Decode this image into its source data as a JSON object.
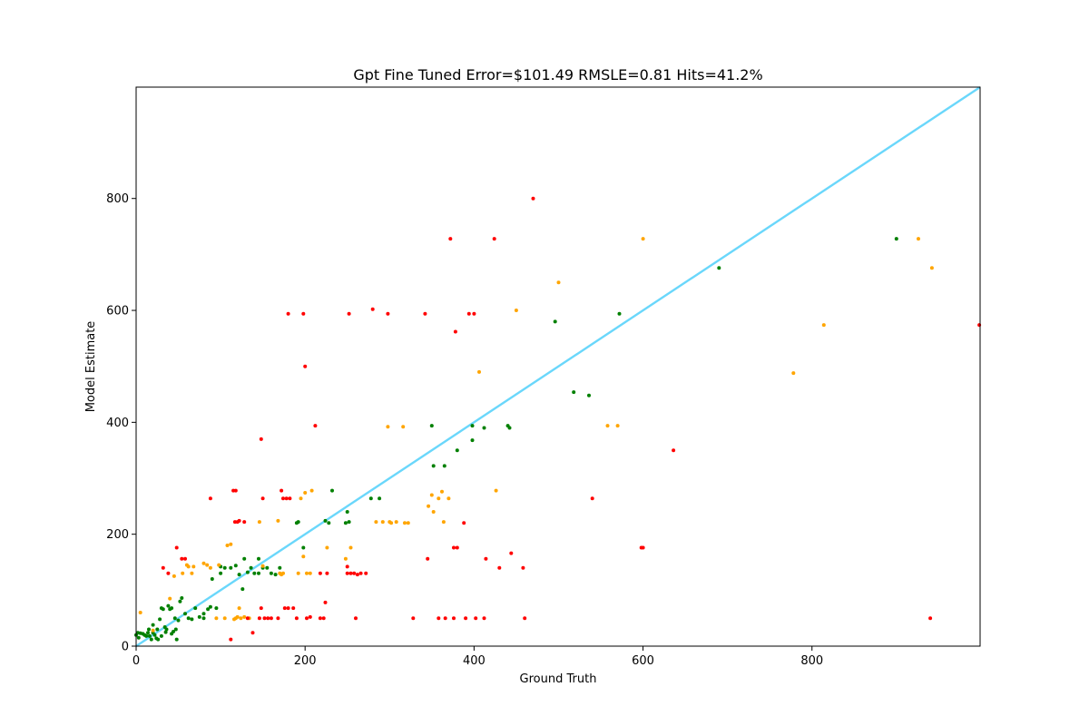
{
  "chart_data": {
    "type": "scatter",
    "title": "Gpt Fine Tuned Error=$101.49 RMSLE=0.81 Hits=41.2%",
    "xlabel": "Ground Truth",
    "ylabel": "Model Estimate",
    "xlim": [
      0,
      999
    ],
    "ylim": [
      0,
      999
    ],
    "xticks": [
      "0",
      "200",
      "400",
      "600",
      "800"
    ],
    "yticks": [
      "0",
      "200",
      "400",
      "600",
      "800"
    ],
    "grid": false,
    "legend": "none",
    "reference_line": {
      "from": [
        0,
        0
      ],
      "to": [
        999,
        999
      ],
      "color": "#6ad7fb"
    },
    "colors": {
      "green": "#008000",
      "orange": "#ffa500",
      "red": "#ff0000"
    },
    "series": [
      {
        "color": "green",
        "points": [
          [
            2,
            24
          ],
          [
            5,
            23
          ],
          [
            8,
            22
          ],
          [
            10,
            20
          ],
          [
            12,
            18
          ],
          [
            14,
            24
          ],
          [
            16,
            18
          ],
          [
            18,
            12
          ],
          [
            20,
            24
          ],
          [
            22,
            20
          ],
          [
            24,
            14
          ],
          [
            26,
            12
          ],
          [
            28,
            48
          ],
          [
            30,
            68
          ],
          [
            32,
            66
          ],
          [
            34,
            34
          ],
          [
            36,
            30
          ],
          [
            38,
            72
          ],
          [
            40,
            66
          ],
          [
            42,
            68
          ],
          [
            44,
            26
          ],
          [
            46,
            50
          ],
          [
            48,
            12
          ],
          [
            50,
            46
          ],
          [
            52,
            80
          ],
          [
            54,
            86
          ],
          [
            58,
            58
          ],
          [
            62,
            50
          ],
          [
            66,
            48
          ],
          [
            70,
            68
          ],
          [
            75,
            52
          ],
          [
            80,
            50
          ],
          [
            85,
            66
          ],
          [
            88,
            70
          ],
          [
            90,
            120
          ],
          [
            95,
            68
          ],
          [
            100,
            130
          ],
          [
            105,
            140
          ],
          [
            112,
            140
          ],
          [
            118,
            144
          ],
          [
            122,
            128
          ],
          [
            126,
            102
          ],
          [
            128,
            156
          ],
          [
            132,
            132
          ],
          [
            136,
            140
          ],
          [
            140,
            130
          ],
          [
            145,
            156
          ],
          [
            150,
            140
          ],
          [
            155,
            140
          ],
          [
            160,
            130
          ],
          [
            165,
            128
          ],
          [
            170,
            140
          ],
          [
            190,
            220
          ],
          [
            192,
            222
          ],
          [
            198,
            176
          ],
          [
            224,
            224
          ],
          [
            228,
            220
          ],
          [
            232,
            278
          ],
          [
            248,
            220
          ],
          [
            250,
            240
          ],
          [
            252,
            222
          ],
          [
            278,
            264
          ],
          [
            288,
            264
          ],
          [
            350,
            394
          ],
          [
            352,
            322
          ],
          [
            365,
            322
          ],
          [
            380,
            350
          ],
          [
            398,
            394
          ],
          [
            398,
            368
          ],
          [
            412,
            390
          ],
          [
            440,
            394
          ],
          [
            442,
            390
          ],
          [
            496,
            580
          ],
          [
            518,
            454
          ],
          [
            536,
            448
          ],
          [
            572,
            594
          ],
          [
            690,
            676
          ],
          [
            900,
            728
          ],
          [
            0,
            20
          ],
          [
            3,
            15
          ],
          [
            15,
            30
          ],
          [
            20,
            38
          ],
          [
            25,
            30
          ],
          [
            30,
            18
          ],
          [
            35,
            25
          ],
          [
            42,
            22
          ],
          [
            47,
            30
          ],
          [
            80,
            58
          ],
          [
            100,
            142
          ],
          [
            145,
            130
          ]
        ]
      },
      {
        "color": "orange",
        "points": [
          [
            5,
            60
          ],
          [
            20,
            28
          ],
          [
            40,
            85
          ],
          [
            45,
            125
          ],
          [
            55,
            130
          ],
          [
            60,
            145
          ],
          [
            62,
            142
          ],
          [
            66,
            130
          ],
          [
            68,
            142
          ],
          [
            80,
            148
          ],
          [
            84,
            145
          ],
          [
            88,
            140
          ],
          [
            95,
            50
          ],
          [
            98,
            145
          ],
          [
            105,
            50
          ],
          [
            108,
            180
          ],
          [
            112,
            182
          ],
          [
            116,
            48
          ],
          [
            118,
            50
          ],
          [
            120,
            52
          ],
          [
            122,
            68
          ],
          [
            124,
            50
          ],
          [
            128,
            52
          ],
          [
            134,
            50
          ],
          [
            146,
            222
          ],
          [
            150,
            143
          ],
          [
            168,
            224
          ],
          [
            170,
            130
          ],
          [
            172,
            128
          ],
          [
            174,
            130
          ],
          [
            192,
            130
          ],
          [
            195,
            264
          ],
          [
            198,
            160
          ],
          [
            200,
            274
          ],
          [
            202,
            130
          ],
          [
            206,
            130
          ],
          [
            208,
            278
          ],
          [
            226,
            176
          ],
          [
            248,
            156
          ],
          [
            254,
            176
          ],
          [
            284,
            222
          ],
          [
            292,
            222
          ],
          [
            298,
            392
          ],
          [
            300,
            222
          ],
          [
            302,
            220
          ],
          [
            308,
            222
          ],
          [
            316,
            392
          ],
          [
            318,
            220
          ],
          [
            322,
            220
          ],
          [
            346,
            250
          ],
          [
            350,
            270
          ],
          [
            352,
            240
          ],
          [
            358,
            264
          ],
          [
            362,
            276
          ],
          [
            364,
            222
          ],
          [
            370,
            264
          ],
          [
            406,
            490
          ],
          [
            426,
            278
          ],
          [
            450,
            600
          ],
          [
            500,
            650
          ],
          [
            558,
            394
          ],
          [
            570,
            394
          ],
          [
            600,
            728
          ],
          [
            778,
            488
          ],
          [
            814,
            574
          ],
          [
            926,
            728
          ],
          [
            942,
            676
          ]
        ]
      },
      {
        "color": "red",
        "points": [
          [
            32,
            140
          ],
          [
            38,
            130
          ],
          [
            48,
            176
          ],
          [
            54,
            156
          ],
          [
            58,
            156
          ],
          [
            88,
            264
          ],
          [
            112,
            12
          ],
          [
            115,
            278
          ],
          [
            117,
            222
          ],
          [
            118,
            278
          ],
          [
            120,
            222
          ],
          [
            122,
            224
          ],
          [
            128,
            222
          ],
          [
            132,
            50
          ],
          [
            138,
            24
          ],
          [
            146,
            50
          ],
          [
            148,
            68
          ],
          [
            150,
            264
          ],
          [
            152,
            50
          ],
          [
            156,
            50
          ],
          [
            160,
            50
          ],
          [
            168,
            50
          ],
          [
            172,
            278
          ],
          [
            174,
            264
          ],
          [
            176,
            68
          ],
          [
            178,
            264
          ],
          [
            180,
            68
          ],
          [
            182,
            264
          ],
          [
            186,
            68
          ],
          [
            190,
            50
          ],
          [
            180,
            594
          ],
          [
            198,
            594
          ],
          [
            200,
            500
          ],
          [
            202,
            50
          ],
          [
            206,
            52
          ],
          [
            212,
            394
          ],
          [
            218,
            50
          ],
          [
            218,
            130
          ],
          [
            222,
            50
          ],
          [
            224,
            78
          ],
          [
            226,
            130
          ],
          [
            252,
            594
          ],
          [
            250,
            130
          ],
          [
            254,
            130
          ],
          [
            258,
            130
          ],
          [
            260,
            50
          ],
          [
            262,
            128
          ],
          [
            266,
            130
          ],
          [
            272,
            130
          ],
          [
            250,
            142
          ],
          [
            280,
            602
          ],
          [
            298,
            594
          ],
          [
            328,
            50
          ],
          [
            342,
            594
          ],
          [
            345,
            156
          ],
          [
            358,
            50
          ],
          [
            366,
            50
          ],
          [
            372,
            728
          ],
          [
            376,
            50
          ],
          [
            378,
            562
          ],
          [
            376,
            176
          ],
          [
            380,
            176
          ],
          [
            388,
            220
          ],
          [
            390,
            50
          ],
          [
            394,
            594
          ],
          [
            400,
            594
          ],
          [
            402,
            50
          ],
          [
            412,
            50
          ],
          [
            414,
            156
          ],
          [
            424,
            728
          ],
          [
            430,
            140
          ],
          [
            444,
            166
          ],
          [
            458,
            140
          ],
          [
            460,
            50
          ],
          [
            470,
            800
          ],
          [
            540,
            264
          ],
          [
            598,
            176
          ],
          [
            600,
            176
          ],
          [
            636,
            350
          ],
          [
            940,
            50
          ],
          [
            998,
            574
          ],
          [
            148,
            370
          ]
        ]
      }
    ]
  }
}
